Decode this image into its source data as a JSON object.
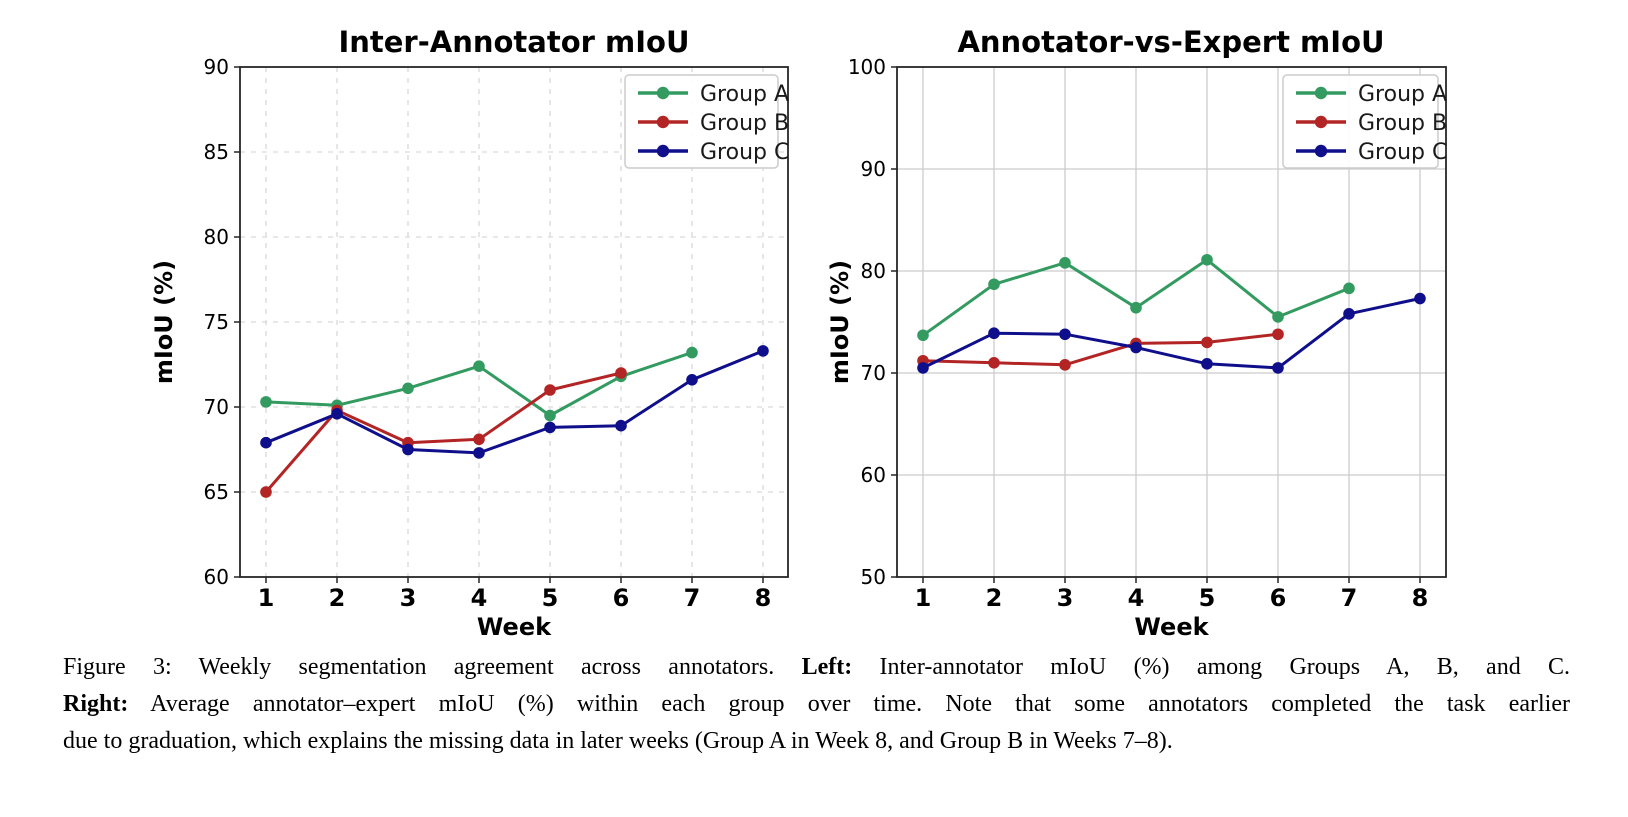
{
  "colors": {
    "group_a": "#339a60",
    "group_b": "#b32525",
    "group_c": "#0f0f8c",
    "grid_dashed": "#d9d9d9",
    "grid_solid": "#cccccc",
    "spine": "#262626",
    "legend_border": "#cccccc",
    "text": "#000000"
  },
  "chart_data": [
    {
      "type": "line",
      "title": "Inter-Annotator mIoU",
      "xlabel": "Week",
      "ylabel": "mIoU (%)",
      "x": [
        1,
        2,
        3,
        4,
        5,
        6,
        7,
        8
      ],
      "xtick_labels": [
        "1",
        "2",
        "3",
        "4",
        "5",
        "6",
        "7",
        "8"
      ],
      "ylim": [
        60,
        90
      ],
      "yticks": [
        60,
        65,
        70,
        75,
        80,
        85,
        90
      ],
      "grid": "dashed",
      "legend_position": "upper right",
      "legend_entries": [
        "Group A",
        "Group B",
        "Group C"
      ],
      "series": [
        {
          "name": "Group A",
          "color_key": "group_a",
          "values": [
            70.3,
            70.1,
            71.1,
            72.4,
            69.5,
            71.8,
            73.2,
            null
          ]
        },
        {
          "name": "Group B",
          "color_key": "group_b",
          "values": [
            65.0,
            69.8,
            67.9,
            68.1,
            71.0,
            72.0,
            null,
            null
          ]
        },
        {
          "name": "Group C",
          "color_key": "group_c",
          "values": [
            67.9,
            69.6,
            67.5,
            67.3,
            68.8,
            68.9,
            71.6,
            73.3
          ]
        }
      ]
    },
    {
      "type": "line",
      "title": "Annotator-vs-Expert mIoU",
      "xlabel": "Week",
      "ylabel": "mIoU (%)",
      "x": [
        1,
        2,
        3,
        4,
        5,
        6,
        7,
        8
      ],
      "xtick_labels": [
        "1",
        "2",
        "3",
        "4",
        "5",
        "6",
        "7",
        "8"
      ],
      "ylim": [
        50,
        100
      ],
      "yticks": [
        50,
        60,
        70,
        80,
        90,
        100
      ],
      "grid": "solid",
      "legend_position": "upper right",
      "legend_entries": [
        "Group A",
        "Group B",
        "Group C"
      ],
      "series": [
        {
          "name": "Group A",
          "color_key": "group_a",
          "values": [
            73.7,
            78.7,
            80.8,
            76.4,
            81.1,
            75.5,
            78.3,
            null
          ]
        },
        {
          "name": "Group B",
          "color_key": "group_b",
          "values": [
            71.2,
            71.0,
            70.8,
            72.9,
            73.0,
            73.8,
            null,
            null
          ]
        },
        {
          "name": "Group C",
          "color_key": "group_c",
          "values": [
            70.5,
            73.9,
            73.8,
            72.5,
            70.9,
            70.5,
            75.8,
            77.3
          ]
        }
      ]
    }
  ],
  "caption": {
    "lines": [
      {
        "justify": true,
        "segments": [
          {
            "text": "Figure 3: Weekly segmentation agreement across annotators. ",
            "bold": false
          },
          {
            "text": "Left:",
            "bold": true
          },
          {
            "text": " Inter-annotator mIoU (%) among Groups A, B, and C.",
            "bold": false
          }
        ]
      },
      {
        "justify": true,
        "segments": [
          {
            "text": "Right:",
            "bold": true
          },
          {
            "text": " Average annotator–expert mIoU (%) within each group over time. Note that some annotators completed the task earlier",
            "bold": false
          }
        ]
      },
      {
        "justify": false,
        "segments": [
          {
            "text": "due to graduation, which explains the missing data in later weeks (Group A in Week 8, and Group B in Weeks 7–8).",
            "bold": false
          }
        ]
      }
    ]
  }
}
